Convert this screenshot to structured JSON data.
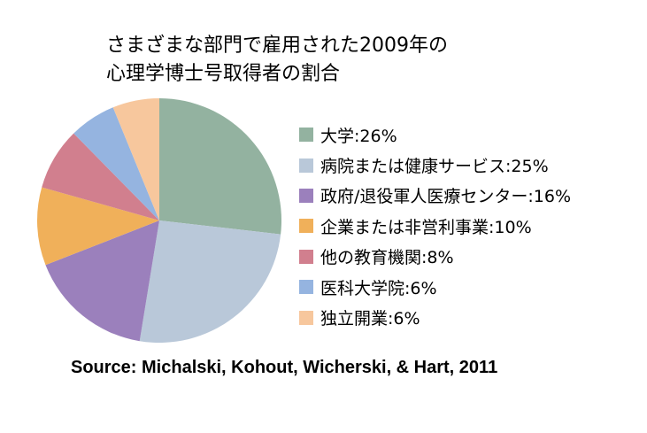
{
  "chart_data": {
    "type": "pie",
    "title_lines": [
      "さまざまな部門で雇用された2009年の",
      "心理学博士号取得者の割合"
    ],
    "slices": [
      {
        "label": "大学:26%",
        "value": 26,
        "color": "#93b2a0"
      },
      {
        "label": "病院または健康サービス:25%",
        "value": 25,
        "color": "#b9c8d9"
      },
      {
        "label": "政府/退役軍人医療センター:16%",
        "value": 16,
        "color": "#9b80bc"
      },
      {
        "label": "企業または非営利事業:10%",
        "value": 10,
        "color": "#f0b05a"
      },
      {
        "label": "他の教育機関:8%",
        "value": 8,
        "color": "#d17f8e"
      },
      {
        "label": "医科大学院:6%",
        "value": 6,
        "color": "#95b4e0"
      },
      {
        "label": "独立開業:6%",
        "value": 6,
        "color": "#f7c79d"
      }
    ],
    "start_angle": "top",
    "direction": "clockwise",
    "legend_position": "right",
    "source": "Source: Michalski, Kohout, Wicherski, & Hart, 2011"
  }
}
